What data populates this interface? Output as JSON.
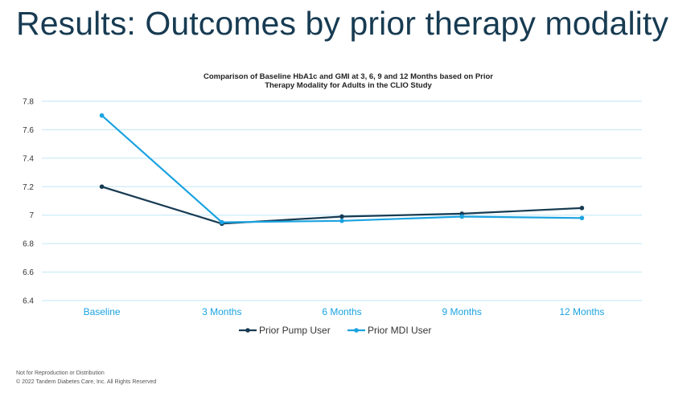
{
  "slide": {
    "title": "Results: Outcomes by prior therapy modality",
    "footer_line1": "Not for Reproduction or Distribution",
    "footer_line2": "© 2022 Tandem Diabetes Care, Inc. All Rights Reserved"
  },
  "chart_data": {
    "type": "line",
    "title_lines": [
      "Comparison of Baseline HbA1c and GMI at 3, 6, 9 and 12 Months based on Prior",
      "Therapy Modality for Adults in the CLIO Study"
    ],
    "categories": [
      "Baseline",
      "3 Months",
      "6 Months",
      "9 Months",
      "12 Months"
    ],
    "series": [
      {
        "name": "Prior Pump User",
        "color": "#173b52",
        "values": [
          7.2,
          6.94,
          6.99,
          7.01,
          7.05
        ]
      },
      {
        "name": "Prior MDI User",
        "color": "#1aa3e0",
        "values": [
          7.7,
          6.95,
          6.96,
          6.99,
          6.98
        ]
      }
    ],
    "yticks": [
      "6.4",
      "6.6",
      "6.8",
      "7",
      "7.2",
      "7.4",
      "7.6",
      "7.8"
    ],
    "ylim": [
      6.4,
      7.8
    ],
    "grid": true,
    "gridline_color": "#bfe6f7",
    "category_label_color": "#1aa3e0",
    "legend_position": "bottom"
  }
}
